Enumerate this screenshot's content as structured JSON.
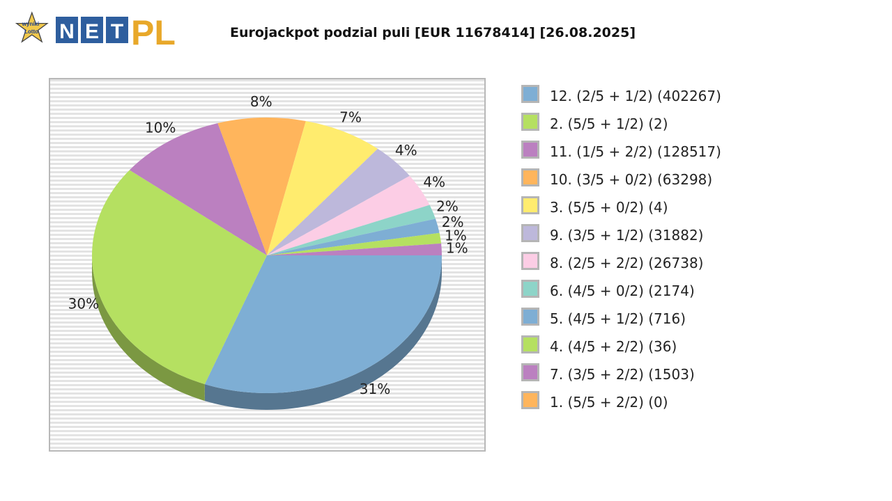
{
  "header": {
    "logo": {
      "badge_text_top": "wyniki",
      "badge_text_bottom": "Lotto",
      "letters": [
        "N",
        "E",
        "T"
      ],
      "suffix": "PL"
    },
    "title": "Eurojackpot podzial puli [EUR 11678414] [26.08.2025]"
  },
  "chart_data": {
    "type": "pie",
    "title": "Eurojackpot podzial puli [EUR 11678414] [26.08.2025]",
    "slices": [
      {
        "label": "12. (2/5 + 1/2) (402267)",
        "percent_label": "31%",
        "value": 402267,
        "color": "#7eaed4"
      },
      {
        "label": "2. (5/5 + 1/2) (2)",
        "percent_label": "30%",
        "value": 390000,
        "color": "#b5e061"
      },
      {
        "label": "11. (1/5 + 2/2) (128517)",
        "percent_label": "10%",
        "value": 128517,
        "color": "#bb80c0"
      },
      {
        "label": "10. (3/5 + 0/2) (63298)",
        "percent_label": "8%",
        "value": 106000,
        "color": "#ffb55c"
      },
      {
        "label": "3. (5/5 + 0/2) (4)",
        "percent_label": "7%",
        "value": 96000,
        "color": "#ffec6e"
      },
      {
        "label": "9. (3/5 + 1/2) (31882)",
        "percent_label": "4%",
        "value": 56000,
        "color": "#bdb8db"
      },
      {
        "label": "8. (2/5 + 2/2) (26738)",
        "percent_label": "4%",
        "value": 50000,
        "color": "#fccde5"
      },
      {
        "label": "6. (4/5 + 0/2) (2174)",
        "percent_label": "2%",
        "value": 22000,
        "color": "#8dd4c8"
      },
      {
        "label": "5. (4/5 + 1/2) (716)",
        "percent_label": "2%",
        "value": 22000,
        "color": "#7eaed4"
      },
      {
        "label": "4. (4/5 + 2/2) (36)",
        "percent_label": "1%",
        "value": 16000,
        "color": "#b5e061"
      },
      {
        "label": "7. (3/5 + 2/2) (1503)",
        "percent_label": "1%",
        "value": 18000,
        "color": "#bb80c0"
      },
      {
        "label": "1. (5/5 + 2/2) (0)",
        "percent_label": "",
        "value": 0,
        "color": "#ffb55c"
      }
    ],
    "grid": false,
    "legend_position": "right"
  }
}
